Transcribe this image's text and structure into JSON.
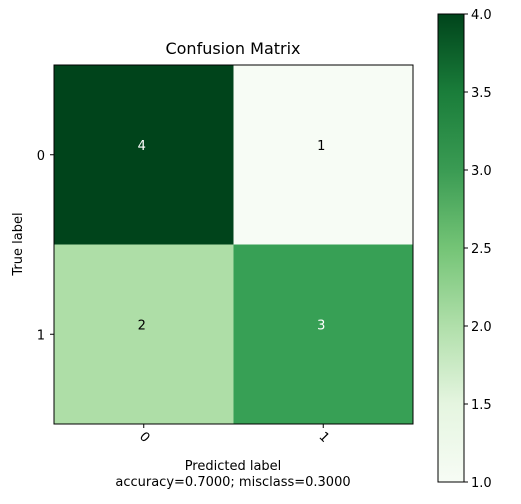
{
  "chart_data": {
    "type": "heatmap",
    "title": "Confusion Matrix",
    "xlabel": "Predicted label",
    "ylabel": "True label",
    "footer": "accuracy=0.7000; misclass=0.3000",
    "row_labels": [
      "0",
      "1"
    ],
    "col_labels": [
      "0",
      "1"
    ],
    "values": [
      [
        4,
        1
      ],
      [
        2,
        3
      ]
    ],
    "colormap": "Greens",
    "color_range": [
      1,
      4
    ],
    "colorbar_ticks": [
      "1.0",
      "1.5",
      "2.0",
      "2.5",
      "3.0",
      "3.5",
      "4.0"
    ],
    "colors": {
      "min": "#f7fcf5",
      "mid_low": "#b0dfaa",
      "mid_high": "#3a9b53",
      "max": "#00441b"
    }
  }
}
